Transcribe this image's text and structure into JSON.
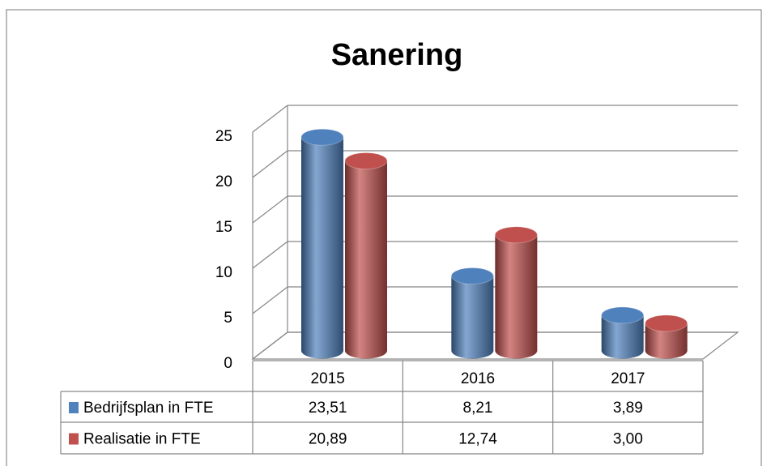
{
  "chart_data": {
    "type": "bar3d",
    "title": "Sanering",
    "categories": [
      "2015",
      "2016",
      "2017"
    ],
    "series": [
      {
        "name": "Bedrijfsplan in FTE",
        "color": "#4f81bd",
        "values": [
          23.51,
          8.21,
          3.89
        ],
        "value_labels": [
          "23,51",
          "8,21",
          "3,89"
        ]
      },
      {
        "name": "Realisatie in FTE",
        "color": "#c0504d",
        "values": [
          20.89,
          12.74,
          3.0
        ],
        "value_labels": [
          "20,89",
          "12,74",
          "3,00"
        ]
      }
    ],
    "ylim": [
      0,
      25
    ],
    "yticks": [
      0,
      5,
      10,
      15,
      20,
      25
    ],
    "grid": true,
    "data_table": true
  }
}
